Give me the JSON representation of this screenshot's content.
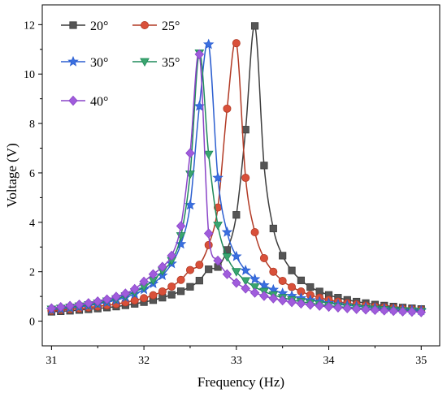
{
  "chart_data": {
    "type": "line",
    "title": "",
    "xlabel": "Frequency (Hz)",
    "ylabel": "Voltage (V)",
    "xlim": [
      30.9,
      35.2
    ],
    "ylim": [
      -1.0,
      12.8
    ],
    "x_ticks": [
      31,
      32,
      33,
      34,
      35
    ],
    "y_ticks": [
      0,
      2,
      4,
      6,
      8,
      10,
      12
    ],
    "x_tick_labels": [
      "31",
      "32",
      "33",
      "34",
      "35"
    ],
    "y_tick_labels": [
      "0",
      "2",
      "4",
      "6",
      "8",
      "10",
      "12"
    ],
    "grid": false,
    "legend_position": "top-left",
    "series": [
      {
        "name": "20°",
        "marker": "square",
        "color": "#3d3d3d",
        "fill": "#555555",
        "x": [
          31.0,
          31.1,
          31.2,
          31.3,
          31.4,
          31.5,
          31.6,
          31.7,
          31.8,
          31.9,
          32.0,
          32.1,
          32.2,
          32.3,
          32.4,
          32.5,
          32.6,
          32.7,
          32.8,
          32.9,
          33.0,
          33.1,
          33.2,
          33.3,
          33.4,
          33.5,
          33.6,
          33.7,
          33.8,
          33.9,
          34.0,
          34.1,
          34.2,
          34.3,
          34.4,
          34.5,
          34.6,
          34.7,
          34.8,
          34.9,
          35.0
        ],
        "y": [
          0.38,
          0.4,
          0.42,
          0.45,
          0.48,
          0.51,
          0.55,
          0.59,
          0.64,
          0.7,
          0.77,
          0.85,
          0.95,
          1.07,
          1.21,
          1.39,
          1.64,
          2.1,
          2.19,
          2.88,
          4.3,
          7.75,
          11.95,
          6.3,
          3.75,
          2.65,
          2.05,
          1.65,
          1.38,
          1.2,
          1.06,
          0.95,
          0.86,
          0.79,
          0.73,
          0.67,
          0.63,
          0.59,
          0.55,
          0.52,
          0.49
        ]
      },
      {
        "name": "25°",
        "marker": "circle",
        "color": "#b23a25",
        "fill": "#d9503a",
        "x": [
          31.0,
          31.1,
          31.2,
          31.3,
          31.4,
          31.5,
          31.6,
          31.7,
          31.8,
          31.9,
          32.0,
          32.1,
          32.2,
          32.3,
          32.4,
          32.5,
          32.6,
          32.7,
          32.8,
          32.9,
          33.0,
          33.1,
          33.2,
          33.3,
          33.4,
          33.5,
          33.6,
          33.7,
          33.8,
          33.9,
          34.0,
          34.1,
          34.2,
          34.3,
          34.4,
          34.5,
          34.6,
          34.7,
          34.8,
          34.9,
          35.0
        ],
        "y": [
          0.42,
          0.45,
          0.48,
          0.51,
          0.55,
          0.59,
          0.64,
          0.69,
          0.76,
          0.84,
          0.93,
          1.05,
          1.2,
          1.4,
          1.67,
          2.07,
          2.28,
          3.08,
          4.6,
          8.6,
          11.25,
          5.8,
          3.6,
          2.55,
          2.0,
          1.63,
          1.38,
          1.2,
          1.06,
          0.95,
          0.86,
          0.79,
          0.73,
          0.68,
          0.63,
          0.59,
          0.56,
          0.53,
          0.5,
          0.48,
          0.46
        ]
      },
      {
        "name": "30°",
        "marker": "star",
        "color": "#2d5fd0",
        "fill": "#3a6fe0",
        "x": [
          31.0,
          31.1,
          31.2,
          31.3,
          31.4,
          31.5,
          31.6,
          31.7,
          31.8,
          31.9,
          32.0,
          32.1,
          32.2,
          32.3,
          32.4,
          32.5,
          32.6,
          32.7,
          32.8,
          32.9,
          33.0,
          33.1,
          33.2,
          33.3,
          33.4,
          33.5,
          33.6,
          33.7,
          33.8,
          33.9,
          34.0,
          34.1,
          34.2,
          34.3,
          34.4,
          34.5,
          34.6,
          34.7,
          34.8,
          34.9,
          35.0
        ],
        "y": [
          0.46,
          0.5,
          0.54,
          0.58,
          0.63,
          0.69,
          0.76,
          0.85,
          0.96,
          1.1,
          1.28,
          1.52,
          1.85,
          2.33,
          3.12,
          4.7,
          8.7,
          11.2,
          5.8,
          3.6,
          2.62,
          2.05,
          1.7,
          1.45,
          1.27,
          1.13,
          1.02,
          0.93,
          0.85,
          0.79,
          0.73,
          0.68,
          0.64,
          0.6,
          0.57,
          0.54,
          0.51,
          0.49,
          0.47,
          0.45,
          0.43
        ]
      },
      {
        "name": "35°",
        "marker": "triangle-down",
        "color": "#1f8a5a",
        "fill": "#3aa56f",
        "x": [
          31.0,
          31.1,
          31.2,
          31.3,
          31.4,
          31.5,
          31.6,
          31.7,
          31.8,
          31.9,
          32.0,
          32.1,
          32.2,
          32.3,
          32.4,
          32.5,
          32.6,
          32.7,
          32.8,
          32.9,
          33.0,
          33.1,
          33.2,
          33.3,
          33.4,
          33.5,
          33.6,
          33.7,
          33.8,
          33.9,
          34.0,
          34.1,
          34.2,
          34.3,
          34.4,
          34.5,
          34.6,
          34.7,
          34.8,
          34.9,
          35.0
        ],
        "y": [
          0.48,
          0.52,
          0.56,
          0.61,
          0.66,
          0.73,
          0.81,
          0.9,
          1.02,
          1.18,
          1.38,
          1.65,
          2.03,
          2.45,
          3.45,
          5.95,
          10.85,
          6.75,
          3.88,
          2.6,
          2.0,
          1.63,
          1.38,
          1.2,
          1.06,
          0.95,
          0.86,
          0.79,
          0.73,
          0.68,
          0.63,
          0.59,
          0.56,
          0.53,
          0.5,
          0.48,
          0.46,
          0.44,
          0.42,
          0.41,
          0.39
        ]
      },
      {
        "name": "40°",
        "marker": "diamond",
        "color": "#8a45c8",
        "fill": "#a05cdc",
        "x": [
          31.0,
          31.1,
          31.2,
          31.3,
          31.4,
          31.5,
          31.6,
          31.7,
          31.8,
          31.9,
          32.0,
          32.1,
          32.2,
          32.3,
          32.4,
          32.5,
          32.6,
          32.7,
          32.8,
          32.9,
          33.0,
          33.1,
          33.2,
          33.3,
          33.4,
          33.5,
          33.6,
          33.7,
          33.8,
          33.9,
          34.0,
          34.1,
          34.2,
          34.3,
          34.4,
          34.5,
          34.6,
          34.7,
          34.8,
          34.9,
          35.0
        ],
        "y": [
          0.52,
          0.57,
          0.62,
          0.67,
          0.73,
          0.8,
          0.88,
          0.99,
          1.12,
          1.3,
          1.6,
          1.9,
          2.2,
          2.65,
          3.85,
          6.8,
          10.8,
          3.55,
          2.45,
          1.9,
          1.55,
          1.32,
          1.15,
          1.02,
          0.92,
          0.84,
          0.77,
          0.71,
          0.66,
          0.62,
          0.58,
          0.55,
          0.52,
          0.49,
          0.47,
          0.45,
          0.43,
          0.41,
          0.39,
          0.38,
          0.36
        ]
      }
    ]
  }
}
